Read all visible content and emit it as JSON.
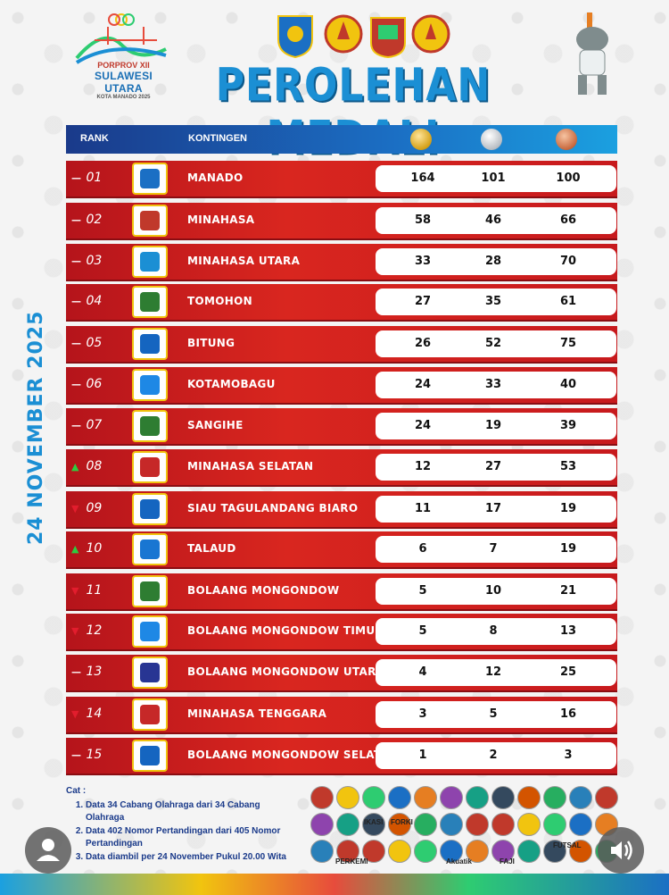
{
  "header": {
    "event_line1": "PORPROV XII",
    "event_line2": "SULAWESI UTARA",
    "event_line3": "KOTA MANADO 2025",
    "title": "PEROLEHAN MEDALI",
    "date": "24 NOVEMBER 2025"
  },
  "table": {
    "col_rank": "RANK",
    "col_kontingen": "KONTINGEN",
    "rows": [
      {
        "trend": "same",
        "trend_symbol": "—",
        "rank": "01",
        "name": "MANADO",
        "gold": 164,
        "silver": 101,
        "bronze": 100,
        "crest_color": "#1b6fc4"
      },
      {
        "trend": "same",
        "trend_symbol": "—",
        "rank": "02",
        "name": "MINAHASA",
        "gold": 58,
        "silver": 46,
        "bronze": 66,
        "crest_color": "#c0392b"
      },
      {
        "trend": "same",
        "trend_symbol": "—",
        "rank": "03",
        "name": "MINAHASA UTARA",
        "gold": 33,
        "silver": 28,
        "bronze": 70,
        "crest_color": "#1b8fd4"
      },
      {
        "trend": "same",
        "trend_symbol": "—",
        "rank": "04",
        "name": "TOMOHON",
        "gold": 27,
        "silver": 35,
        "bronze": 61,
        "crest_color": "#2e7d32"
      },
      {
        "trend": "same",
        "trend_symbol": "—",
        "rank": "05",
        "name": "BITUNG",
        "gold": 26,
        "silver": 52,
        "bronze": 75,
        "crest_color": "#1565c0"
      },
      {
        "trend": "same",
        "trend_symbol": "—",
        "rank": "06",
        "name": "KOTAMOBAGU",
        "gold": 24,
        "silver": 33,
        "bronze": 40,
        "crest_color": "#1e88e5"
      },
      {
        "trend": "same",
        "trend_symbol": "—",
        "rank": "07",
        "name": "SANGIHE",
        "gold": 24,
        "silver": 19,
        "bronze": 39,
        "crest_color": "#2e7d32"
      },
      {
        "trend": "up",
        "trend_symbol": "▲",
        "rank": "08",
        "name": "MINAHASA SELATAN",
        "gold": 12,
        "silver": 27,
        "bronze": 53,
        "crest_color": "#c62828"
      },
      {
        "trend": "down",
        "trend_symbol": "▼",
        "rank": "09",
        "name": "SIAU TAGULANDANG BIARO",
        "gold": 11,
        "silver": 17,
        "bronze": 19,
        "crest_color": "#1565c0"
      },
      {
        "trend": "up",
        "trend_symbol": "▲",
        "rank": "10",
        "name": "TALAUD",
        "gold": 6,
        "silver": 7,
        "bronze": 19,
        "crest_color": "#1976d2"
      },
      {
        "trend": "down",
        "trend_symbol": "▼",
        "rank": "11",
        "name": "BOLAANG MONGONDOW",
        "gold": 5,
        "silver": 10,
        "bronze": 21,
        "crest_color": "#2e7d32"
      },
      {
        "trend": "down",
        "trend_symbol": "▼",
        "rank": "12",
        "name": "BOLAANG MONGONDOW TIMUR",
        "gold": 5,
        "silver": 8,
        "bronze": 13,
        "crest_color": "#1e88e5"
      },
      {
        "trend": "same",
        "trend_symbol": "—",
        "rank": "13",
        "name": "BOLAANG MONGONDOW UTARA",
        "gold": 4,
        "silver": 12,
        "bronze": 25,
        "crest_color": "#283593"
      },
      {
        "trend": "down",
        "trend_symbol": "▼",
        "rank": "14",
        "name": "MINAHASA TENGGARA",
        "gold": 3,
        "silver": 5,
        "bronze": 16,
        "crest_color": "#c62828"
      },
      {
        "trend": "same",
        "trend_symbol": "—",
        "rank": "15",
        "name": "BOLAANG MONGONDOW SELATAN",
        "gold": 1,
        "silver": 2,
        "bronze": 3,
        "crest_color": "#1565c0"
      }
    ]
  },
  "notes": {
    "label": "Cat :",
    "items": [
      "Data 34 Cabang Olahraga dari 34 Cabang Olahraga",
      "Data 402 Nomor Pertandingan dari 405 Nomor Pertandingan",
      "Data diambil per 24 November Pukul 20.00 Wita"
    ]
  },
  "sponsor_labels": {
    "perkemi": "PERKEMI",
    "akuatik": "Akuatik",
    "faji": "FAJI",
    "futsal": "FUTSAL",
    "forki": "FORKI",
    "ikasi": "IKASI"
  },
  "colors": {
    "title_blue": "#1b8fd4",
    "row_red": "#d9261f",
    "header_blue": "#1b6fc4"
  }
}
